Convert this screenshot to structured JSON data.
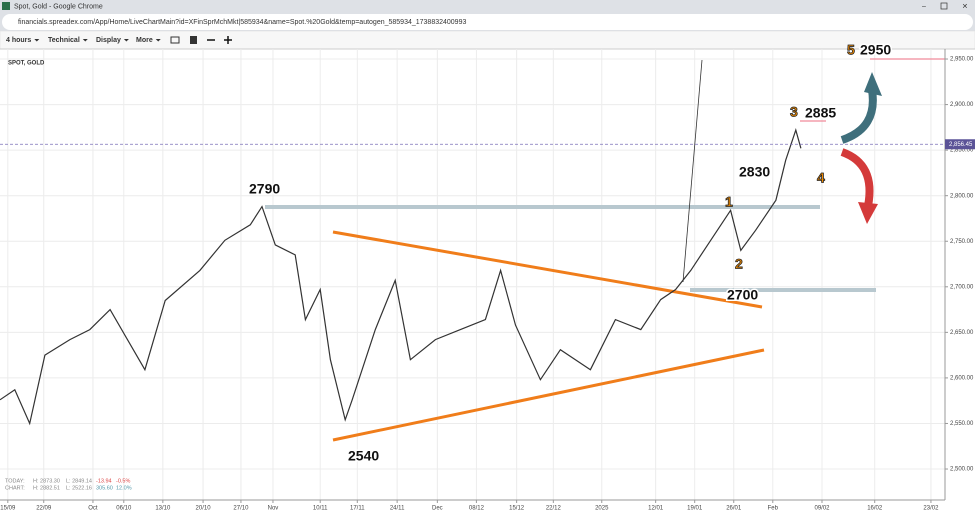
{
  "window": {
    "title": "Spot, Gold - Google Chrome",
    "url": "financials.spreadex.com/App/Home/LiveChartMain?id=XFinSprMchMkt|585934&name=Spot.%20Gold&temp=autogen_585934_1738832400993"
  },
  "toolbar": {
    "items": [
      "4 hours",
      "Technical",
      "Display",
      "More"
    ]
  },
  "instrument": "SPOT, GOLD",
  "stats": {
    "today": [
      "TODAY:",
      "H: 2873.30",
      "L: 2849.14",
      "-13.94",
      "-0.5%"
    ],
    "chart": [
      "CHART:",
      "H: 2882.51",
      "L: 2522.16",
      "305.60",
      "12.0%"
    ]
  },
  "annotations": [
    "2790",
    "2540",
    "2700",
    "2830",
    "1",
    "2",
    "3",
    "2885",
    "4",
    "5",
    "2950"
  ],
  "chart_data": {
    "type": "line",
    "color": "#333333",
    "x": [
      -0.2,
      0.18,
      0.56,
      0.95,
      1.59,
      2.1,
      2.62,
      3.51,
      4.03,
      4.92,
      5.56,
      6.21,
      6.51,
      6.85,
      7.36,
      7.62,
      8.0,
      8.26,
      8.64,
      8.82,
      9.41,
      9.92,
      10.31,
      10.95,
      11.59,
      12.23,
      12.62,
      13.0,
      13.64,
      14.15,
      14.92,
      15.56,
      16.21,
      16.72,
      17.1,
      17.49,
      18.0,
      18.51,
      18.77,
      19.15,
      19.67,
      19.92,
      20.18,
      20.31
    ],
    "values": [
      2576,
      2587,
      2550,
      2625,
      2642,
      2653,
      2675,
      2609,
      2685,
      2718,
      2751,
      2768,
      2788,
      2746,
      2735,
      2664,
      2697,
      2620,
      2554,
      2576,
      2653,
      2707,
      2620,
      2642,
      2653,
      2664,
      2718,
      2658,
      2598,
      2631,
      2609,
      2664,
      2653,
      2686,
      2697,
      2718,
      2751,
      2784,
      2740,
      2762,
      2795,
      2839,
      2872,
      2852
    ],
    "xlim": [
      -0.2,
      24.0
    ],
    "ylim": [
      2466,
      2961
    ],
    "xticks": [
      {
        "value": 0,
        "label": "15/09"
      },
      {
        "value": 0.92,
        "label": "22/09"
      },
      {
        "value": 2.18,
        "label": "Oct"
      },
      {
        "value": 2.97,
        "label": "06/10"
      },
      {
        "value": 3.97,
        "label": "13/10"
      },
      {
        "value": 5.0,
        "label": "20/10"
      },
      {
        "value": 5.97,
        "label": "27/10"
      },
      {
        "value": 6.79,
        "label": "Nov"
      },
      {
        "value": 8.0,
        "label": "10/11"
      },
      {
        "value": 8.95,
        "label": "17/11"
      },
      {
        "value": 9.97,
        "label": "24/11"
      },
      {
        "value": 11.0,
        "label": "Dec"
      },
      {
        "value": 12.0,
        "label": "08/12"
      },
      {
        "value": 13.03,
        "label": "15/12"
      },
      {
        "value": 13.97,
        "label": "22/12"
      },
      {
        "value": 15.21,
        "label": "2025"
      },
      {
        "value": 16.59,
        "label": "12/01"
      },
      {
        "value": 17.59,
        "label": "19/01"
      },
      {
        "value": 18.59,
        "label": "26/01"
      },
      {
        "value": 19.59,
        "label": "Feb"
      },
      {
        "value": 20.85,
        "label": "09/02"
      },
      {
        "value": 22.2,
        "label": "16/02"
      },
      {
        "value": 23.64,
        "label": "23/02"
      }
    ],
    "yticks": [
      {
        "value": 2500,
        "label": "2,500.00"
      },
      {
        "value": 2550,
        "label": "2,550.00"
      },
      {
        "value": 2600,
        "label": "2,600.00"
      },
      {
        "value": 2650,
        "label": "2,650.00"
      },
      {
        "value": 2700,
        "label": "2,700.00"
      },
      {
        "value": 2750,
        "label": "2,750.00"
      },
      {
        "value": 2800,
        "label": "2,800.00"
      },
      {
        "value": 2850,
        "label": "2,850.00"
      },
      {
        "value": 2900,
        "label": "2,900.00"
      },
      {
        "value": 2950,
        "label": "2,950.00"
      }
    ],
    "current_price": {
      "value": 2856.45,
      "label": "2,856.45"
    },
    "grid": true
  }
}
